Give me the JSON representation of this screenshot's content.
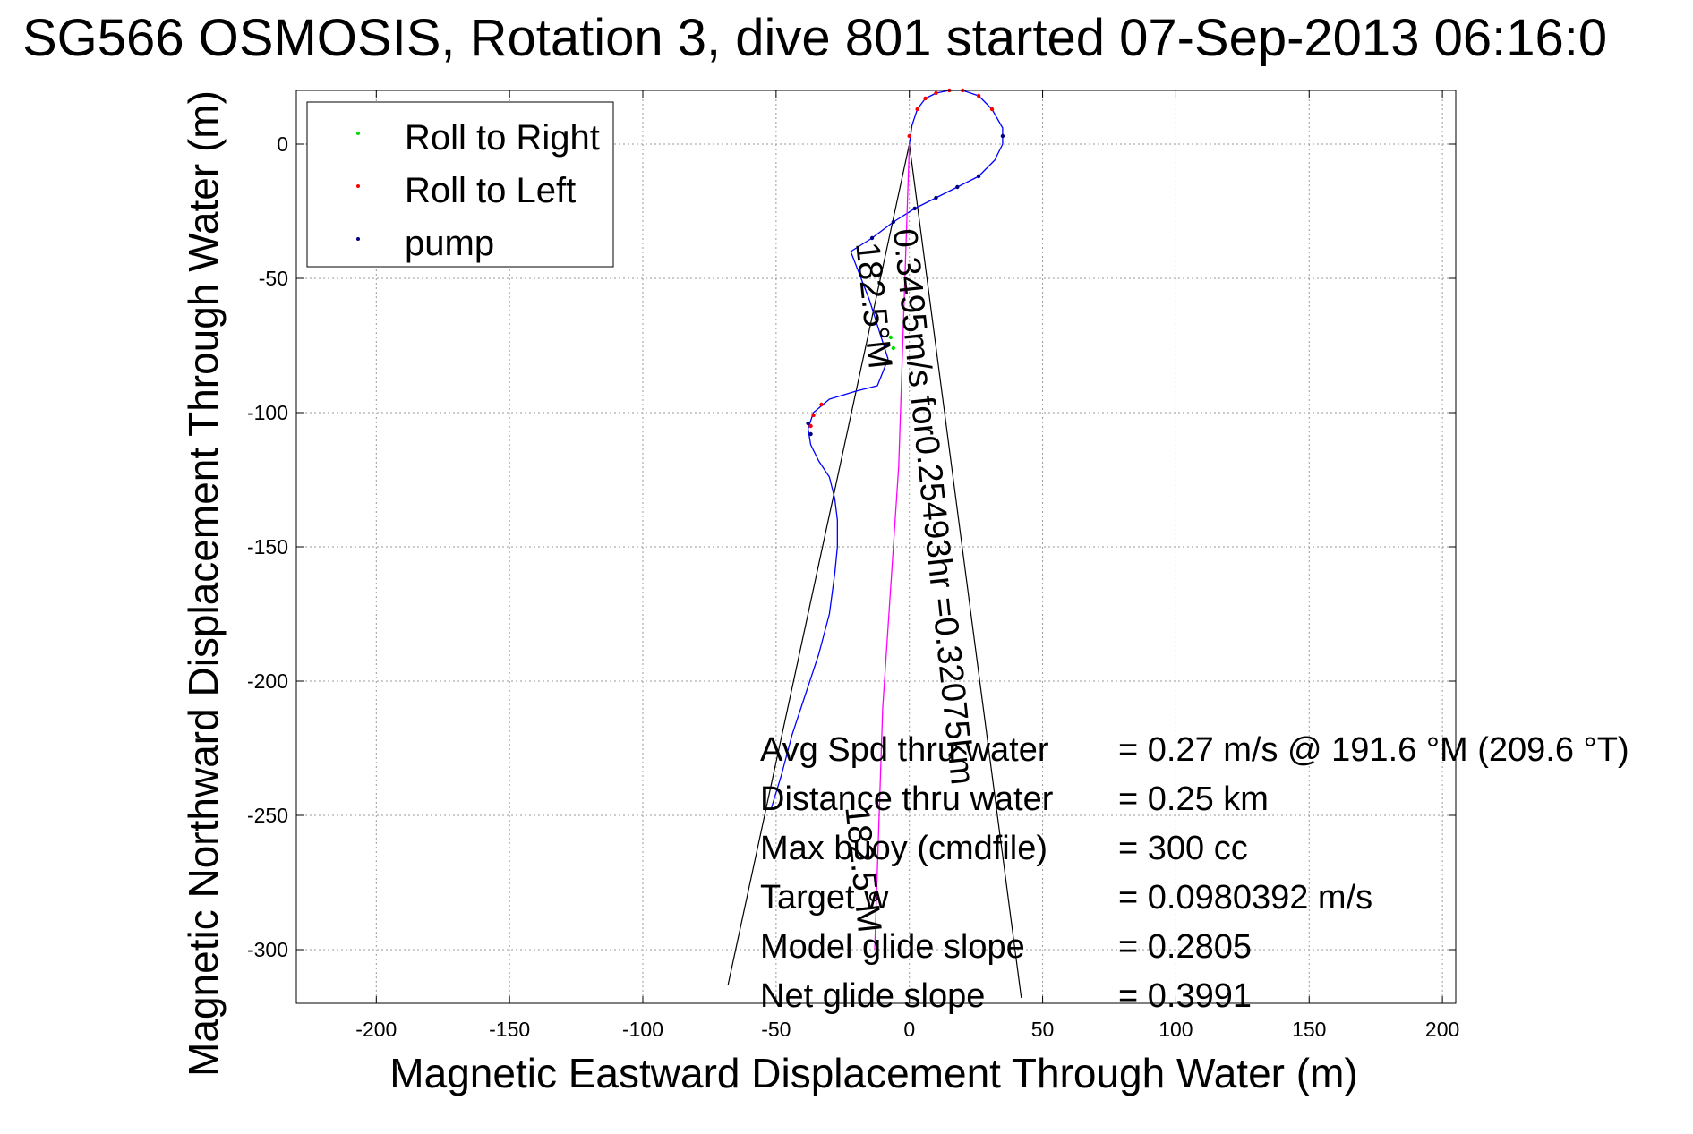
{
  "chart_data": {
    "type": "line",
    "title": "SG566 OSMOSIS, Rotation 3, dive 801 started 07-Sep-2013 06:16:0",
    "xlabel": "Magnetic Eastward Displacement Through Water (m)",
    "ylabel": "Magnetic Northward Displacement Through Water (m)",
    "xlim": [
      -230,
      205
    ],
    "ylim": [
      -320,
      20
    ],
    "xticks": [
      -200,
      -150,
      -100,
      -50,
      0,
      50,
      100,
      150,
      200
    ],
    "yticks": [
      0,
      -50,
      -100,
      -150,
      -200,
      -250,
      -300
    ],
    "grid": true,
    "legend_position": "top-left",
    "legend": [
      {
        "label": "Roll to Right",
        "color": "#00dd00"
      },
      {
        "label": "Roll to Left",
        "color": "#ff0000"
      },
      {
        "label": "pump",
        "color": "#000080"
      }
    ],
    "series": [
      {
        "color": "#0000ff",
        "x": [
          0,
          1,
          3,
          6,
          10,
          15,
          20,
          26,
          31,
          35,
          35,
          32,
          26,
          18,
          10,
          2,
          -6,
          -14,
          -22,
          -15,
          -8,
          -12,
          -20,
          -30,
          -36,
          -38,
          -37,
          -34,
          -30,
          -28,
          -27,
          -27,
          -28,
          -30,
          -34,
          -39,
          -44,
          -48,
          -52
        ],
        "y": [
          0,
          7,
          13,
          17,
          19,
          20,
          20,
          18,
          13,
          6,
          0,
          -6,
          -12,
          -16,
          -20,
          -24,
          -29,
          -35,
          -40,
          -58,
          -80,
          -90,
          -92,
          -95,
          -100,
          -106,
          -112,
          -118,
          -124,
          -132,
          -140,
          -150,
          -160,
          -175,
          -190,
          -205,
          -220,
          -235,
          -248
        ]
      },
      {
        "color": "#ff00ff",
        "x": [
          0,
          -1,
          -2,
          -3,
          -4,
          -6,
          -8,
          -10,
          -11,
          -12,
          -13
        ],
        "y": [
          0,
          -30,
          -60,
          -90,
          -120,
          -150,
          -180,
          -210,
          -240,
          -270,
          -300
        ]
      }
    ],
    "markers": [
      {
        "series": "Roll to Left",
        "x": [
          0,
          3,
          6,
          10,
          15,
          20,
          26,
          31,
          -33,
          -36,
          -37
        ],
        "y": [
          3,
          13,
          17,
          19,
          20,
          20,
          18,
          13,
          -97,
          -101,
          -105
        ]
      },
      {
        "series": "Roll to Right",
        "x": [
          -7,
          -6
        ],
        "y": [
          -72,
          -76
        ]
      },
      {
        "series": "pump",
        "x": [
          35,
          26,
          18,
          10,
          2,
          -6,
          -14,
          -38,
          -37
        ],
        "y": [
          3,
          -12,
          -16,
          -20,
          -24,
          -29,
          -35,
          -104,
          -108
        ]
      }
    ],
    "reference_lines": [
      {
        "x": [
          0,
          -68
        ],
        "y": [
          0,
          -313
        ]
      },
      {
        "x": [
          0,
          42
        ],
        "y": [
          0,
          -318
        ]
      }
    ],
    "rotated_annotations": [
      {
        "text": "0.3495m/s for0.25493hr =0.32075km",
        "angle": 84,
        "x": -6,
        "y": -32
      },
      {
        "text": "182.5°M",
        "angle": 84,
        "x": -20,
        "y": -37
      },
      {
        "text": "182.5°M",
        "angle": 84,
        "x": -24,
        "y": -247
      }
    ],
    "stats": [
      {
        "label": "Avg Spd thru water",
        "value": "=  0.27 m/s @ 191.6 °M (209.6 °T)"
      },
      {
        "label": "Distance thru water",
        "value": "=  0.25 km"
      },
      {
        "label": "Max buoy (cmdfile)",
        "value": "= 300 cc"
      },
      {
        "label": "Target w",
        "value": "= 0.0980392 m/s"
      },
      {
        "label": "Model glide slope",
        "value": "= 0.2805"
      },
      {
        "label": "Net glide slope",
        "value": "= 0.3991"
      }
    ]
  }
}
